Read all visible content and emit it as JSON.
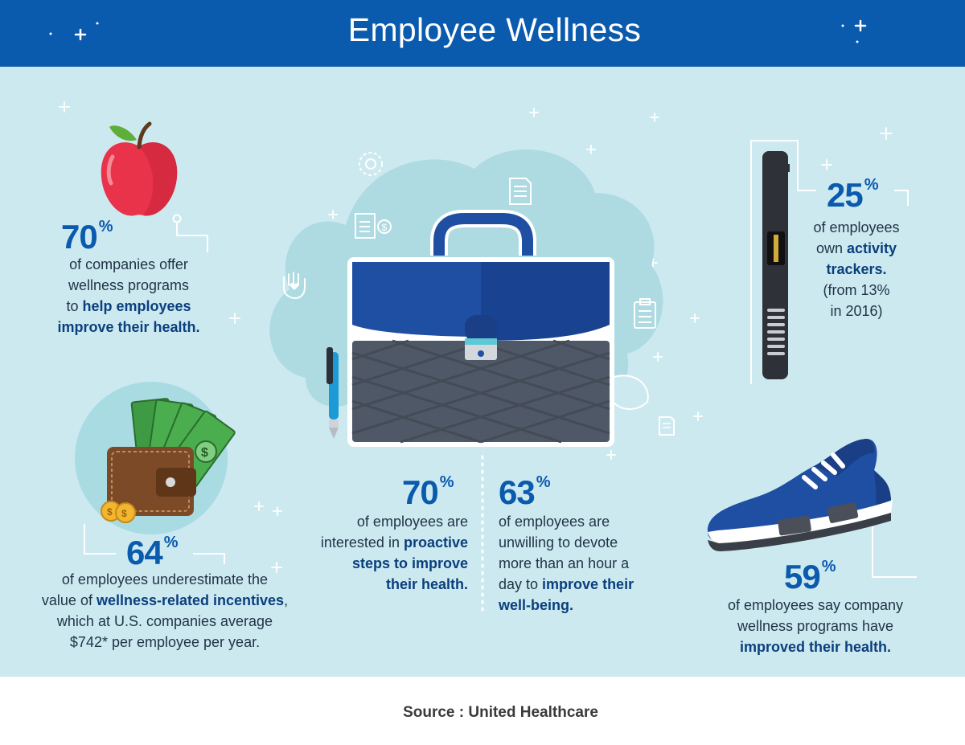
{
  "title": "Employee Wellness",
  "source": "Source : United Healthcare",
  "colors": {
    "header": "#0a5aad",
    "background": "#cde9f0",
    "accent": "#0a5aad"
  },
  "stats": {
    "companies": {
      "value": "70",
      "unit": "%",
      "line1": "of companies offer",
      "line2": "wellness programs",
      "line3_pre": "to ",
      "line3_bold": "help employees",
      "line4_bold": "improve their health."
    },
    "incentives": {
      "value": "64",
      "unit": "%",
      "line1": "of employees underestimate the",
      "line2_pre": "value of ",
      "line2_bold": "wellness-related incentives",
      "line2_post": ",",
      "line3": "which at U.S. companies average",
      "line4": "$742*  per employee per year."
    },
    "proactive": {
      "value": "70",
      "unit": "%",
      "line1": "of employees are",
      "line2_pre": "interested in ",
      "line2_bold": "proactive",
      "line3_bold": "steps to improve",
      "line4_bold": "their health."
    },
    "unwilling": {
      "value": "63",
      "unit": "%",
      "line1": "of employees are",
      "line2": "unwilling to devote",
      "line3": "more than an hour a",
      "line4_pre": "day to ",
      "line4_bold": "improve their",
      "line5_bold": "well-being."
    },
    "trackers": {
      "value": "25",
      "unit": "%",
      "line1": "of employees",
      "line2_pre": "own ",
      "line2_bold": "activity",
      "line3_bold": "trackers.",
      "line4": "(from 13%",
      "line5": "in 2016)"
    },
    "improved": {
      "value": "59",
      "unit": "%",
      "line1": "of employees say company",
      "line2": "wellness programs have",
      "line3_bold": "improved their health."
    }
  },
  "icons": [
    "apple-icon",
    "wallet-icon",
    "money-icon",
    "coins-icon",
    "briefcase-icon",
    "pen-icon",
    "fitness-tracker-icon",
    "sneaker-icon",
    "gear-icon",
    "document-icon",
    "clipboard-icon",
    "clipboard-dollar-icon",
    "heart-hand-icon"
  ]
}
